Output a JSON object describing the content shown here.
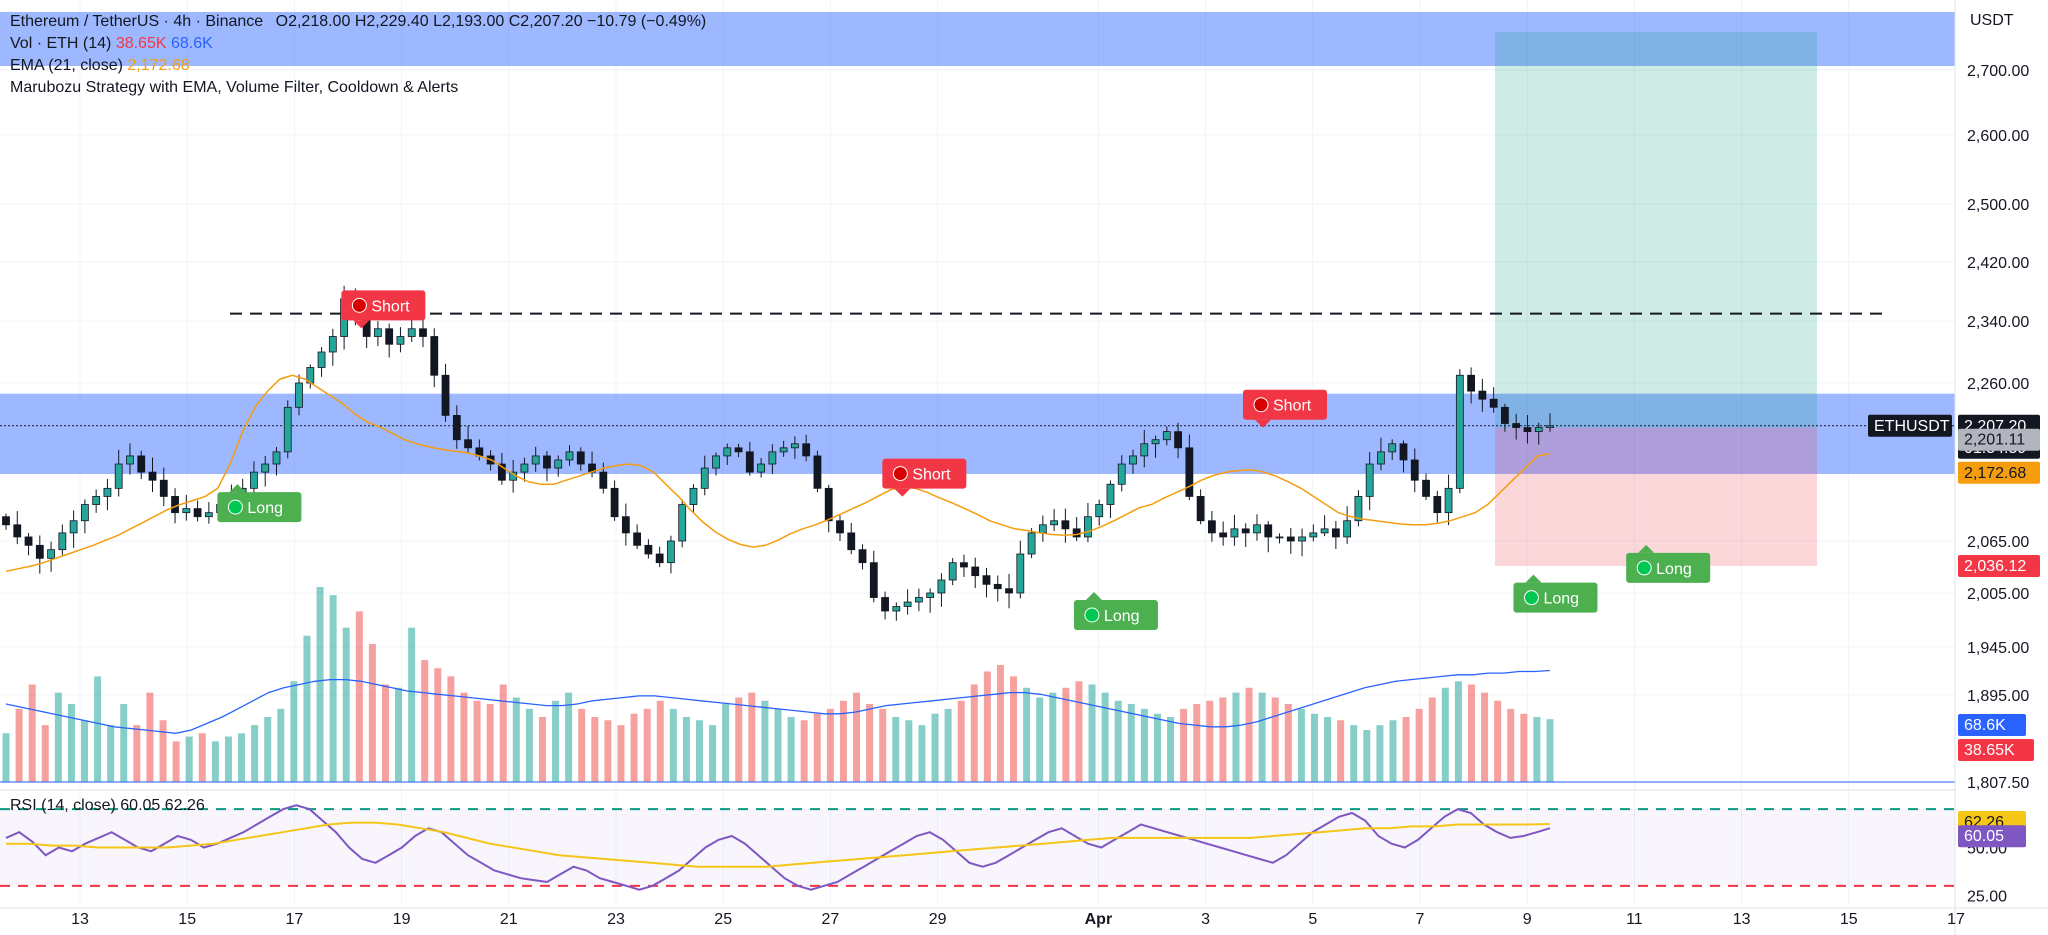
{
  "header": {
    "symbol": "Ethereum / TetherUS · 4h · Binance",
    "open": "O2,218.00",
    "high": "H2,229.40",
    "low": "L2,193.00",
    "close": "C2,207.20",
    "change": "−10.79 (−0.49%)",
    "vol_label": "Vol · ETH (14)",
    "vol_value": "38.65K",
    "vol_ma": "68.6K",
    "ema_label": "EMA (21, close)",
    "ema_value": "2,172.68",
    "strategy": "Marubozu Strategy with EMA, Volume Filter, Cooldown & Alerts",
    "currency": "USDT"
  },
  "rsi_legend": {
    "label": "RSI (14, close)",
    "value": "60.05",
    "ma": "62.26"
  },
  "colors": {
    "up": "#26a69a",
    "down": "#ef5350",
    "ema": "#f59d0e",
    "zone": "#2962ff",
    "rsi": "#7e57c2",
    "rsi_ma": "#f5c518"
  },
  "chart_data": [
    {
      "type": "candlestick",
      "title": "Ethereum / TetherUS · 4h · Binance",
      "ylim": [
        1800,
        2770
      ],
      "y_ticks": [
        2700,
        2600,
        2500,
        2420,
        2340,
        2260,
        2065,
        2005,
        1945,
        1895,
        1807.5
      ],
      "y_tick_labels": [
        "2,700.00",
        "2,600.00",
        "2,500.00",
        "2,420.00",
        "2,340.00",
        "2,260.00",
        "2,065.00",
        "2,005.00",
        "1,945.00",
        "1,895.00",
        "1,807.50"
      ],
      "x_ticks": [
        {
          "label": "13",
          "day": 13
        },
        {
          "label": "15",
          "day": 15
        },
        {
          "label": "17",
          "day": 17
        },
        {
          "label": "19",
          "day": 19
        },
        {
          "label": "21",
          "day": 21
        },
        {
          "label": "23",
          "day": 23
        },
        {
          "label": "25",
          "day": 25
        },
        {
          "label": "27",
          "day": 27
        },
        {
          "label": "29",
          "day": 29
        },
        {
          "label": "Apr",
          "day": 32
        },
        {
          "label": "3",
          "day": 34
        },
        {
          "label": "5",
          "day": 36
        },
        {
          "label": "7",
          "day": 38
        },
        {
          "label": "9",
          "day": 40
        },
        {
          "label": "11",
          "day": 42
        },
        {
          "label": "13",
          "day": 44
        },
        {
          "label": "15",
          "day": 46
        },
        {
          "label": "17",
          "day": 48
        }
      ],
      "series": [
        {
          "name": "Ethereum / TetherUS · 4h · Binance",
          "kind": "close",
          "values": [
            2085,
            2070,
            2060,
            2045,
            2055,
            2075,
            2090,
            2110,
            2120,
            2130,
            2160,
            2170,
            2150,
            2140,
            2120,
            2100,
            2105,
            2095,
            2100,
            2110,
            2120,
            2130,
            2150,
            2160,
            2175,
            2230,
            2260,
            2280,
            2300,
            2320,
            2370,
            2345,
            2320,
            2330,
            2310,
            2320,
            2330,
            2320,
            2270,
            2220,
            2190,
            2180,
            2170,
            2160,
            2140,
            2150,
            2160,
            2170,
            2155,
            2165,
            2175,
            2160,
            2150,
            2130,
            2095,
            2075,
            2060,
            2050,
            2040,
            2065,
            2110,
            2130,
            2155,
            2170,
            2180,
            2175,
            2150,
            2160,
            2175,
            2180,
            2185,
            2170,
            2130,
            2090,
            2075,
            2055,
            2040,
            2000,
            1985,
            1990,
            1995,
            2000,
            2005,
            2020,
            2040,
            2035,
            2025,
            2015,
            2010,
            2005,
            2050,
            2075,
            2085,
            2090,
            2080,
            2070,
            2095,
            2110,
            2135,
            2160,
            2170,
            2185,
            2190,
            2200,
            2180,
            2120,
            2090,
            2075,
            2070,
            2080,
            2075,
            2085,
            2070,
            2070,
            2065,
            2070,
            2075,
            2080,
            2070,
            2090,
            2120,
            2160,
            2175,
            2185,
            2165,
            2140,
            2120,
            2100,
            2130,
            2270,
            2250,
            2240,
            2230,
            2210,
            2205,
            2200,
            2205,
            2207.2
          ]
        },
        {
          "name": "EMA (21, close)",
          "kind": "ema",
          "values": [
            2030,
            2033,
            2036,
            2040,
            2045,
            2050,
            2055,
            2060,
            2066,
            2072,
            2080,
            2088,
            2096,
            2104,
            2110,
            2115,
            2120,
            2130,
            2160,
            2200,
            2230,
            2250,
            2265,
            2270,
            2265,
            2255,
            2245,
            2235,
            2222,
            2212,
            2206,
            2198,
            2190,
            2185,
            2181,
            2178,
            2176,
            2174,
            2170,
            2165,
            2155,
            2145,
            2138,
            2135,
            2135,
            2140,
            2145,
            2150,
            2155,
            2158,
            2160,
            2158,
            2150,
            2135,
            2120,
            2103,
            2088,
            2076,
            2067,
            2061,
            2058,
            2060,
            2066,
            2074,
            2080,
            2085,
            2091,
            2098,
            2105,
            2112,
            2120,
            2128,
            2132,
            2130,
            2125,
            2118,
            2112,
            2105,
            2098,
            2090,
            2085,
            2080,
            2078,
            2075,
            2073,
            2072,
            2073,
            2077,
            2083,
            2090,
            2098,
            2106,
            2110,
            2118,
            2125,
            2132,
            2140,
            2146,
            2150,
            2152,
            2153,
            2150,
            2145,
            2138,
            2130,
            2120,
            2110,
            2100,
            2095,
            2092,
            2090,
            2088,
            2086,
            2085,
            2085,
            2087,
            2090,
            2095,
            2100,
            2110,
            2125,
            2140,
            2155,
            2170,
            2172.68
          ]
        },
        {
          "name": "Vol · ETH (14)",
          "kind": "volume",
          "values": [
            30,
            45,
            60,
            35,
            55,
            48,
            38,
            65,
            35,
            48,
            35,
            55,
            38,
            25,
            28,
            30,
            25,
            28,
            30,
            35,
            40,
            45,
            62,
            90,
            120,
            115,
            95,
            105,
            85,
            60,
            58,
            95,
            75,
            70,
            65,
            55,
            50,
            48,
            60,
            52,
            45,
            40,
            50,
            55,
            45,
            40,
            38,
            35,
            42,
            45,
            50,
            45,
            40,
            38,
            35,
            48,
            52,
            55,
            50,
            45,
            40,
            38,
            42,
            45,
            50,
            55,
            48,
            45,
            40,
            38,
            35,
            42,
            45,
            50,
            60,
            68,
            72,
            65,
            58,
            52,
            55,
            58,
            62,
            60,
            55,
            50,
            48,
            45,
            42,
            40,
            45,
            48,
            50,
            52,
            55,
            58,
            55,
            52,
            48,
            45,
            42,
            40,
            38,
            35,
            32,
            35,
            38,
            40,
            45,
            52,
            58,
            62,
            60,
            55,
            50,
            45,
            42,
            40,
            38.65
          ]
        },
        {
          "name": "Vol MA",
          "kind": "volume_ma",
          "values": [
            48,
            46,
            44,
            42,
            40,
            38,
            36,
            34,
            33,
            32,
            31,
            30,
            32,
            36,
            40,
            45,
            50,
            55,
            58,
            60,
            62,
            63,
            63,
            62,
            60,
            58,
            56,
            55,
            54,
            53,
            52,
            51,
            50,
            49,
            48,
            47,
            47,
            48,
            50,
            51,
            52,
            53,
            53,
            52,
            51,
            50,
            49,
            48,
            47,
            46,
            45,
            44,
            43,
            42,
            42,
            43,
            45,
            47,
            48,
            49,
            50,
            51,
            52,
            53,
            54,
            55,
            55,
            54,
            52,
            50,
            48,
            46,
            44,
            42,
            40,
            38,
            36,
            35,
            34,
            34,
            35,
            37,
            40,
            43,
            46,
            49,
            52,
            55,
            58,
            60,
            62,
            63,
            64,
            65,
            66,
            66,
            67,
            67,
            68,
            68,
            68.6
          ]
        },
        {
          "name": "RSI (14, close)",
          "kind": "rsi",
          "values": [
            55,
            58,
            53,
            46,
            50,
            48,
            52,
            55,
            58,
            54,
            50,
            48,
            52,
            56,
            54,
            50,
            52,
            55,
            58,
            62,
            66,
            70,
            72,
            70,
            64,
            58,
            50,
            44,
            42,
            46,
            50,
            56,
            60,
            58,
            52,
            46,
            42,
            38,
            36,
            34,
            33,
            32,
            36,
            40,
            38,
            34,
            32,
            30,
            28,
            30,
            34,
            38,
            44,
            50,
            54,
            56,
            52,
            46,
            40,
            34,
            30,
            28,
            30,
            32,
            36,
            40,
            44,
            48,
            52,
            56,
            58,
            54,
            48,
            42,
            40,
            42,
            46,
            50,
            54,
            58,
            60,
            56,
            52,
            50,
            54,
            58,
            62,
            60,
            58,
            56,
            54,
            52,
            50,
            48,
            46,
            44,
            42,
            46,
            52,
            58,
            62,
            66,
            68,
            64,
            56,
            52,
            50,
            54,
            60,
            66,
            70,
            68,
            62,
            58,
            55,
            56,
            58,
            60.05
          ]
        },
        {
          "name": "RSI MA",
          "kind": "rsi_ma",
          "values": [
            52,
            52,
            51,
            51,
            50,
            50,
            50,
            50,
            51,
            52,
            54,
            56,
            58,
            60,
            62,
            63,
            63,
            62,
            60,
            58,
            55,
            52,
            50,
            48,
            46,
            45,
            44,
            43,
            42,
            41,
            40,
            40,
            40,
            40,
            41,
            42,
            43,
            44,
            45,
            46,
            47,
            48,
            49,
            50,
            51,
            52,
            53,
            54,
            55,
            55,
            55,
            55,
            55,
            55,
            55,
            56,
            57,
            58,
            59,
            60,
            60,
            61,
            61,
            62,
            62,
            62,
            62,
            62.26
          ]
        }
      ],
      "trade_signals": [
        {
          "label": "Long",
          "bar": 20,
          "price": 2150,
          "side": "long"
        },
        {
          "label": "Short",
          "bar": 31,
          "price": 2315,
          "side": "short"
        },
        {
          "label": "Short",
          "bar": 79,
          "price": 2105,
          "side": "short"
        },
        {
          "label": "Long",
          "bar": 96,
          "price": 2020,
          "side": "long"
        },
        {
          "label": "Short",
          "bar": 111,
          "price": 2190,
          "side": "short"
        },
        {
          "label": "Long",
          "bar": 135,
          "price": 2040,
          "side": "long"
        },
        {
          "label": "Long",
          "bar": 145,
          "price": 2075,
          "side": "long"
        }
      ],
      "levels": {
        "resistance_dashed": 2350,
        "zone_top": 2735,
        "zone_bottom_top": 2232,
        "zone_bottom_bottom": 2165,
        "take_profit": 2750,
        "entry": 2205,
        "stop_loss": 2036.12
      },
      "price_labels": [
        {
          "text": "ETHUSDT",
          "value": 2207.2,
          "kind": "symbol"
        },
        {
          "text": "2,207.20",
          "value": 2207.2,
          "kind": "last"
        },
        {
          "text": "01:54:59",
          "value": 2207.2,
          "kind": "countdown"
        },
        {
          "text": "2,201.11",
          "value": 2201.11,
          "kind": "gray"
        },
        {
          "text": "2,172.68",
          "value": 2172.68,
          "kind": "ema"
        },
        {
          "text": "2,036.12",
          "value": 2036.12,
          "kind": "stop"
        },
        {
          "text": "68.6K",
          "value": 68.6,
          "kind": "vol_ma"
        },
        {
          "text": "38.65K",
          "value": 38.65,
          "kind": "vol"
        }
      ],
      "rsi": {
        "ylim": [
          20,
          80
        ],
        "levels": [
          70,
          30
        ],
        "tick_labels": [
          {
            "text": "50.00",
            "value": 50
          },
          {
            "text": "25.00",
            "value": 25
          }
        ],
        "value_labels": [
          {
            "text": "62.26",
            "value": 62.26,
            "kind": "ma"
          },
          {
            "text": "60.05",
            "value": 60.05,
            "kind": "rsi"
          }
        ]
      }
    }
  ]
}
